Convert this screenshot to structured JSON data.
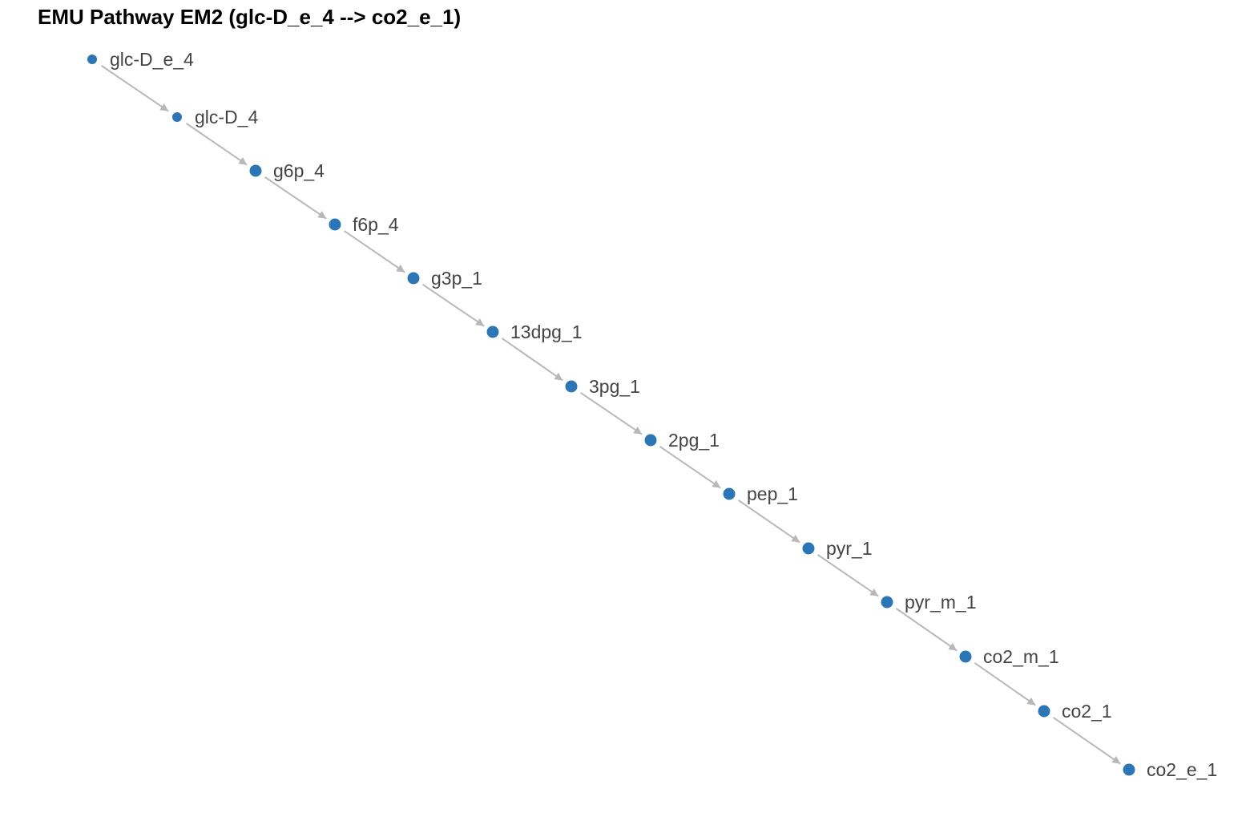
{
  "title": "EMU Pathway EM2 (glc-D_e_4 --> co2_e_1)",
  "colors": {
    "node": "#2a76b6",
    "edge": "#b8b8b8",
    "label": "#444444",
    "title": "#000000"
  },
  "nodes": [
    {
      "id": "glc-D_e_4",
      "label": "glc-D_e_4"
    },
    {
      "id": "glc-D_4",
      "label": "glc-D_4"
    },
    {
      "id": "g6p_4",
      "label": "g6p_4"
    },
    {
      "id": "f6p_4",
      "label": "f6p_4"
    },
    {
      "id": "g3p_1",
      "label": "g3p_1"
    },
    {
      "id": "13dpg_1",
      "label": "13dpg_1"
    },
    {
      "id": "3pg_1",
      "label": "3pg_1"
    },
    {
      "id": "2pg_1",
      "label": "2pg_1"
    },
    {
      "id": "pep_1",
      "label": "pep_1"
    },
    {
      "id": "pyr_1",
      "label": "pyr_1"
    },
    {
      "id": "pyr_m_1",
      "label": "pyr_m_1"
    },
    {
      "id": "co2_m_1",
      "label": "co2_m_1"
    },
    {
      "id": "co2_1",
      "label": "co2_1"
    },
    {
      "id": "co2_e_1",
      "label": "co2_e_1"
    }
  ],
  "edges": [
    {
      "from": "glc-D_e_4",
      "to": "glc-D_4"
    },
    {
      "from": "glc-D_4",
      "to": "g6p_4"
    },
    {
      "from": "g6p_4",
      "to": "f6p_4"
    },
    {
      "from": "f6p_4",
      "to": "g3p_1"
    },
    {
      "from": "g3p_1",
      "to": "13dpg_1"
    },
    {
      "from": "13dpg_1",
      "to": "3pg_1"
    },
    {
      "from": "3pg_1",
      "to": "2pg_1"
    },
    {
      "from": "2pg_1",
      "to": "pep_1"
    },
    {
      "from": "pep_1",
      "to": "pyr_1"
    },
    {
      "from": "pyr_1",
      "to": "pyr_m_1"
    },
    {
      "from": "pyr_m_1",
      "to": "co2_m_1"
    },
    {
      "from": "co2_m_1",
      "to": "co2_1"
    },
    {
      "from": "co2_1",
      "to": "co2_e_1"
    }
  ]
}
